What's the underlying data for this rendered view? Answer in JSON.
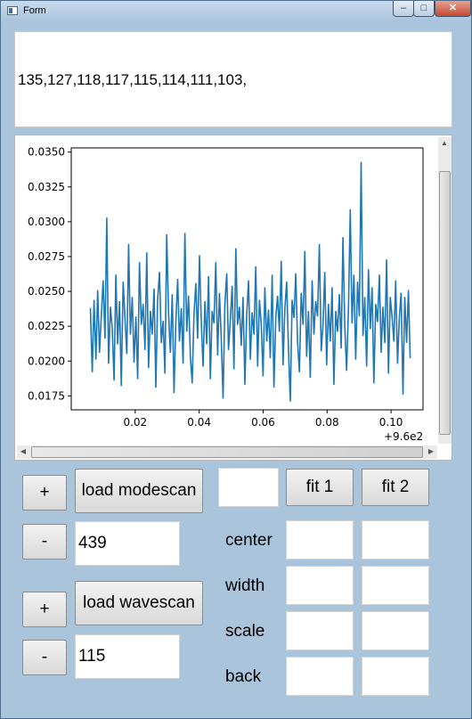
{
  "window": {
    "title": "Form"
  },
  "output": {
    "text": "135,127,118,117,115,114,111,103,"
  },
  "chart_data": {
    "type": "line",
    "color": "#1f77b4",
    "x_offset_label": "+9.6e2",
    "xlim": [
      0.0,
      0.11
    ],
    "ylim": [
      0.0165,
      0.0353
    ],
    "xticks": [
      "0.02",
      "0.04",
      "0.06",
      "0.08",
      "0.10"
    ],
    "xtick_values": [
      0.02,
      0.04,
      0.06,
      0.08,
      0.1
    ],
    "yticks": [
      "0.0175",
      "0.0200",
      "0.0225",
      "0.0250",
      "0.0275",
      "0.0300",
      "0.0325",
      "0.0350"
    ],
    "ytick_values": [
      0.0175,
      0.02,
      0.0225,
      0.025,
      0.0275,
      0.03,
      0.0325,
      0.035
    ],
    "series": [
      {
        "x_start": 0.006,
        "x_end": 0.106,
        "values": [
          0.0238,
          0.0192,
          0.0244,
          0.0201,
          0.0251,
          0.0206,
          0.0233,
          0.0258,
          0.0216,
          0.0303,
          0.0198,
          0.0239,
          0.0224,
          0.0186,
          0.0262,
          0.0212,
          0.0243,
          0.0182,
          0.0257,
          0.0231,
          0.0205,
          0.0284,
          0.0219,
          0.0246,
          0.0199,
          0.0232,
          0.0187,
          0.0271,
          0.0226,
          0.0241,
          0.0208,
          0.0278,
          0.0195,
          0.0236,
          0.0219,
          0.0252,
          0.0181,
          0.0244,
          0.0264,
          0.0213,
          0.0229,
          0.0191,
          0.0291,
          0.0234,
          0.0206,
          0.0248,
          0.0177,
          0.0227,
          0.0259,
          0.0214,
          0.0238,
          0.0198,
          0.0292,
          0.0221,
          0.0247,
          0.0203,
          0.0184,
          0.0233,
          0.0256,
          0.0216,
          0.0276,
          0.0229,
          0.0196,
          0.0243,
          0.0212,
          0.0261,
          0.0187,
          0.0236,
          0.0227,
          0.0271,
          0.0204,
          0.0249,
          0.0217,
          0.0173,
          0.0241,
          0.0263,
          0.0208,
          0.0229,
          0.0254,
          0.0194,
          0.0281,
          0.0226,
          0.0239,
          0.0211,
          0.0246,
          0.0183,
          0.0233,
          0.0258,
          0.0201,
          0.0235,
          0.0219,
          0.0268,
          0.0196,
          0.0244,
          0.0227,
          0.0189,
          0.0253,
          0.0214,
          0.0237,
          0.0202,
          0.0262,
          0.0181,
          0.0231,
          0.0247,
          0.0221,
          0.0272,
          0.0197,
          0.0238,
          0.0257,
          0.0209,
          0.0171,
          0.0244,
          0.0231,
          0.0263,
          0.0214,
          0.0192,
          0.0249,
          0.0226,
          0.0279,
          0.0203,
          0.0236,
          0.0188,
          0.0258,
          0.0219,
          0.0243,
          0.0232,
          0.0284,
          0.0207,
          0.0226,
          0.0264,
          0.0197,
          0.0241,
          0.0214,
          0.0253,
          0.0183,
          0.0236,
          0.0221,
          0.0248,
          0.0209,
          0.0289,
          0.0224,
          0.0193,
          0.0238,
          0.0309,
          0.0227,
          0.0262,
          0.0201,
          0.0257,
          0.0232,
          0.0343,
          0.0218,
          0.0246,
          0.0196,
          0.0266,
          0.0223,
          0.0253,
          0.0184,
          0.0241,
          0.0228,
          0.0262,
          0.0206,
          0.0239,
          0.0213,
          0.0273,
          0.0191,
          0.0246,
          0.0232,
          0.0214,
          0.0258,
          0.0198,
          0.0231,
          0.0249,
          0.0176,
          0.0246,
          0.0213,
          0.0251,
          0.0202
        ]
      }
    ]
  },
  "controls": {
    "plus_label": "+",
    "minus_label": "-",
    "load_modescan": "load modescan",
    "load_wavescan": "load wavescan",
    "modescan_value": "439",
    "wavescan_value": "115",
    "fit1": "fit 1",
    "fit2": "fit 2",
    "fit_small_value": "",
    "labels": {
      "center": "center",
      "width": "width",
      "scale": "scale",
      "back": "back"
    }
  }
}
